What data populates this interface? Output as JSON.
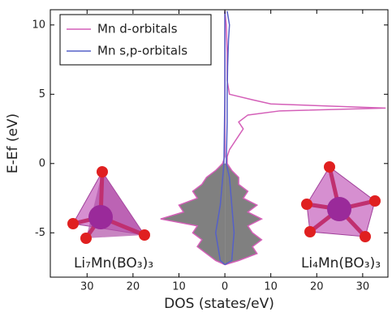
{
  "chart_data": {
    "type": "line",
    "xlabel": "DOS (states/eV)",
    "ylabel": "E-Ef (eV)",
    "xlim": [
      -38,
      35.5
    ],
    "ylim": [
      -8.2,
      11.1
    ],
    "xticks": [
      {
        "value": -30,
        "label": "30"
      },
      {
        "value": -20,
        "label": "20"
      },
      {
        "value": -10,
        "label": "10"
      },
      0,
      10,
      20,
      30
    ],
    "yticks": [
      -5,
      0,
      5,
      10
    ],
    "occupied_fill": "#808080",
    "legend": "upper left",
    "annotations": [
      "Li₇Mn(BO₃)₃",
      "Li₄Mn(BO₃)₃"
    ],
    "series": [
      {
        "name": "Mn d-orbitals",
        "color": "#d45fb8",
        "y": [
          -7.3,
          -7,
          -6.5,
          -6,
          -5.5,
          -5,
          -4.5,
          -4,
          -3.5,
          -3,
          -2.5,
          -2,
          -1.5,
          -1,
          -0.5,
          0,
          0.5,
          11,
          null,
          -7.3,
          -7,
          -6.5,
          -6,
          -5.5,
          -5,
          -4.5,
          -4,
          -3.5,
          -3,
          -2.5,
          -2,
          -1.5,
          -1,
          -0.5,
          0,
          0.5,
          1,
          1.5,
          2,
          2.5,
          3,
          3.5,
          3.8,
          4,
          4.3,
          4.6,
          5,
          6,
          8,
          10,
          11
        ],
        "x": [
          0,
          -2,
          -4,
          -6,
          -5,
          -7,
          -6,
          -14,
          -9,
          -10,
          -6,
          -7,
          -5,
          -4,
          -2,
          -0.5,
          0,
          0,
          null,
          0,
          3,
          7,
          6,
          8,
          6,
          5,
          8,
          5,
          7,
          4,
          5,
          3,
          3,
          1.5,
          0.5,
          0.5,
          1,
          2,
          3,
          4,
          3,
          5,
          12,
          35,
          10,
          6,
          1,
          0.5,
          0.5,
          0.3,
          0
        ]
      },
      {
        "name": "Mn s,p-orbitals",
        "color": "#5560c8",
        "y": [
          -7.3,
          -7,
          -5,
          -3,
          0,
          5,
          11,
          null,
          -7.3,
          -7,
          -5,
          -3,
          -1,
          0,
          3,
          5,
          7,
          9,
          10,
          11
        ],
        "x": [
          0,
          -1,
          -2,
          -1,
          -0.2,
          0,
          0,
          null,
          0,
          1.5,
          2,
          1.5,
          1,
          0.3,
          0.5,
          0.5,
          0.6,
          0.8,
          1,
          0.5
        ]
      }
    ]
  }
}
